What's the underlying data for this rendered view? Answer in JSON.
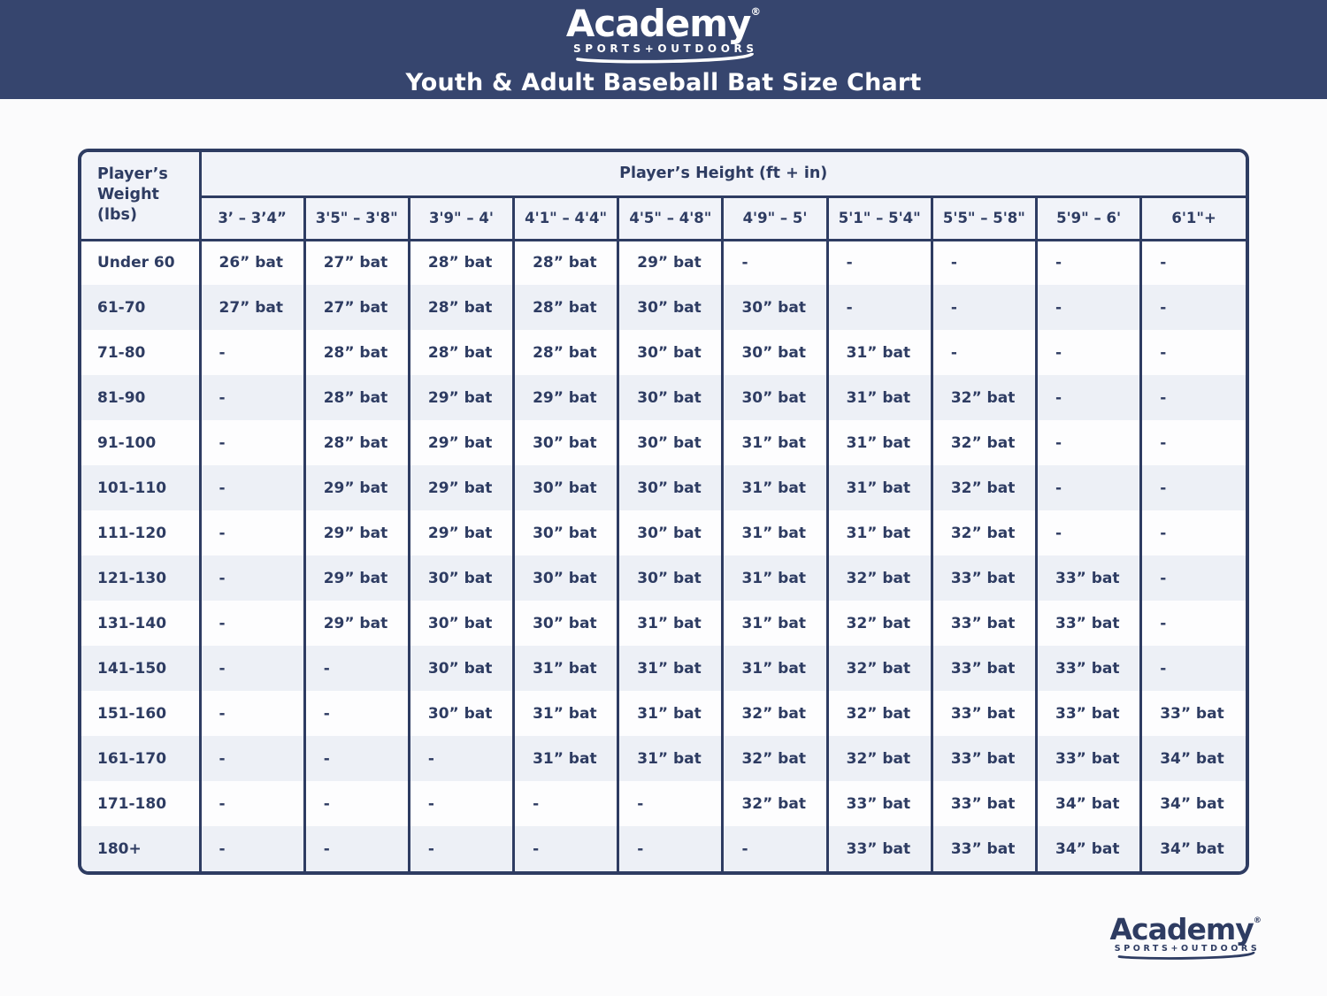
{
  "brand": {
    "name": "Academy",
    "registered": "®",
    "tagline": "SPORTS+OUTDOORS"
  },
  "header": {
    "title": "Youth & Adult Baseball Bat Size Chart"
  },
  "chart_data": {
    "type": "table",
    "title": "Youth & Adult Baseball Bat Size Chart",
    "corner_header": "Player’s Weight (lbs)",
    "span_header": "Player’s Height (ft + in)",
    "col_headers": [
      "3’ – 3’4”",
      "3'5\" – 3'8\"",
      "3'9\" – 4'",
      "4'1\" – 4'4\"",
      "4'5\" – 4'8\"",
      "4'9\" – 5'",
      "5'1\" – 5'4\"",
      "5'5\" – 5'8\"",
      "5'9\" – 6'",
      "6'1\"+"
    ],
    "rows": [
      {
        "weight": "Under 60",
        "cells": [
          "26” bat",
          "27” bat",
          "28” bat",
          "28” bat",
          "29” bat",
          "-",
          "-",
          "-",
          "-",
          "-"
        ]
      },
      {
        "weight": "61-70",
        "cells": [
          "27” bat",
          "27” bat",
          "28” bat",
          "28” bat",
          "30” bat",
          "30” bat",
          "-",
          "-",
          "-",
          "-"
        ]
      },
      {
        "weight": "71-80",
        "cells": [
          "-",
          "28” bat",
          "28” bat",
          "28” bat",
          "30” bat",
          "30” bat",
          "31” bat",
          "-",
          "-",
          "-"
        ]
      },
      {
        "weight": "81-90",
        "cells": [
          "-",
          "28” bat",
          "29” bat",
          "29” bat",
          "30” bat",
          "30” bat",
          "31” bat",
          "32” bat",
          "-",
          "-"
        ]
      },
      {
        "weight": "91-100",
        "cells": [
          "-",
          "28” bat",
          "29” bat",
          "30” bat",
          "30” bat",
          "31” bat",
          "31” bat",
          "32” bat",
          "-",
          "-"
        ]
      },
      {
        "weight": "101-110",
        "cells": [
          "-",
          "29” bat",
          "29” bat",
          "30” bat",
          "30” bat",
          "31” bat",
          "31” bat",
          "32” bat",
          "-",
          "-"
        ]
      },
      {
        "weight": "111-120",
        "cells": [
          "-",
          "29” bat",
          "29” bat",
          "30” bat",
          "30” bat",
          "31” bat",
          "31” bat",
          "32” bat",
          "-",
          "-"
        ]
      },
      {
        "weight": "121-130",
        "cells": [
          "-",
          "29” bat",
          "30” bat",
          "30” bat",
          "30” bat",
          "31” bat",
          "32” bat",
          "33” bat",
          "33” bat",
          "-"
        ]
      },
      {
        "weight": "131-140",
        "cells": [
          "-",
          "29” bat",
          "30” bat",
          "30” bat",
          "31” bat",
          "31” bat",
          "32” bat",
          "33” bat",
          "33” bat",
          "-"
        ]
      },
      {
        "weight": "141-150",
        "cells": [
          "-",
          "-",
          "30” bat",
          "31” bat",
          "31” bat",
          "31” bat",
          "32” bat",
          "33” bat",
          "33” bat",
          "-"
        ]
      },
      {
        "weight": "151-160",
        "cells": [
          "-",
          "-",
          "30” bat",
          "31” bat",
          "31” bat",
          "32” bat",
          "32” bat",
          "33” bat",
          "33” bat",
          "33” bat"
        ]
      },
      {
        "weight": "161-170",
        "cells": [
          "-",
          "-",
          "-",
          "31” bat",
          "31” bat",
          "32” bat",
          "32” bat",
          "33” bat",
          "33” bat",
          "34” bat"
        ]
      },
      {
        "weight": "171-180",
        "cells": [
          "-",
          "-",
          "-",
          "-",
          "-",
          "32” bat",
          "33” bat",
          "33” bat",
          "34” bat",
          "34” bat"
        ]
      },
      {
        "weight": "180+",
        "cells": [
          "-",
          "-",
          "-",
          "-",
          "-",
          "-",
          "33” bat",
          "33” bat",
          "34” bat",
          "34” bat"
        ]
      }
    ]
  },
  "colors": {
    "band_navy": "#36456e",
    "table_navy": "#2e3c62",
    "header_cell_bg": "#f1f3f9",
    "row_alt_bg": "#edf0f6",
    "row_bg": "#fdfdfe"
  }
}
